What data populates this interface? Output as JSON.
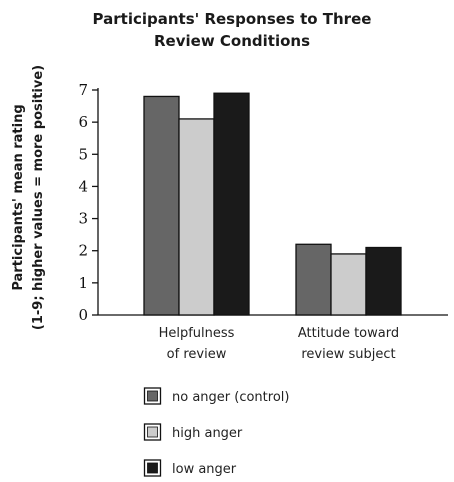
{
  "chart_data": {
    "type": "bar",
    "title_lines": [
      "Participants' Responses to Three",
      "Review Conditions"
    ],
    "ylabel_lines": [
      "Participants' mean rating",
      "(1-9; higher values = more positive)"
    ],
    "xlabel": "",
    "categories": [
      [
        "Helpfulness",
        "of review"
      ],
      [
        "Attitude toward",
        "review subject"
      ]
    ],
    "series": [
      {
        "name": "no anger (control)",
        "color": "#666666",
        "values": [
          6.8,
          2.2
        ]
      },
      {
        "name": "high anger",
        "color": "#cccccc",
        "values": [
          6.1,
          1.9
        ]
      },
      {
        "name": "low anger",
        "color": "#1a1a1a",
        "values": [
          6.9,
          2.1
        ]
      }
    ],
    "ylim": [
      0,
      7
    ],
    "yticks": [
      0,
      1,
      2,
      3,
      4,
      5,
      6,
      7
    ],
    "grid": false,
    "legend_position": "bottom"
  }
}
